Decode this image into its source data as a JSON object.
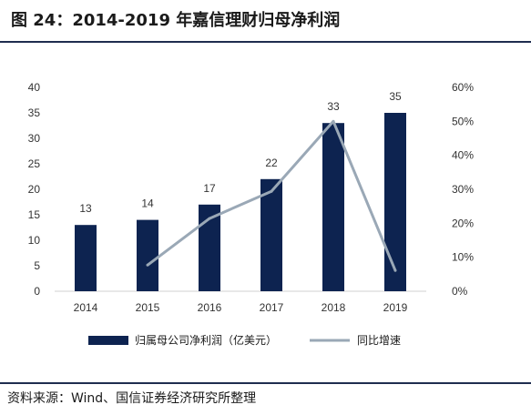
{
  "header": {
    "title": "图 24：2014-2019 年嘉信理财归母净利润"
  },
  "footer": {
    "source": "资料来源：Wind、国信证券经济研究所整理"
  },
  "colors": {
    "bar": "#0d2350",
    "line": "#9aa8b6",
    "rule": "#1f2d4f",
    "axis_text": "#333333"
  },
  "chart_data": {
    "type": "bar",
    "categories": [
      "2014",
      "2015",
      "2016",
      "2017",
      "2018",
      "2019"
    ],
    "series": [
      {
        "name": "归属母公司净利润（亿美元）",
        "type": "bar",
        "axis": "left",
        "values": [
          13,
          14,
          17,
          22,
          33,
          35
        ],
        "data_labels": [
          "13",
          "14",
          "17",
          "22",
          "33",
          "35"
        ]
      },
      {
        "name": "同比增速",
        "type": "line",
        "axis": "right",
        "values": [
          null,
          0.077,
          0.214,
          0.294,
          0.5,
          0.061
        ]
      }
    ],
    "ylim": [
      0,
      40
    ],
    "y_ticks": [
      "0",
      "5",
      "10",
      "15",
      "20",
      "25",
      "30",
      "35",
      "40"
    ],
    "y2lim": [
      0,
      0.6
    ],
    "y2_ticks": [
      "0%",
      "10%",
      "20%",
      "30%",
      "40%",
      "50%",
      "60%"
    ],
    "grid": false,
    "legend_position": "bottom"
  }
}
